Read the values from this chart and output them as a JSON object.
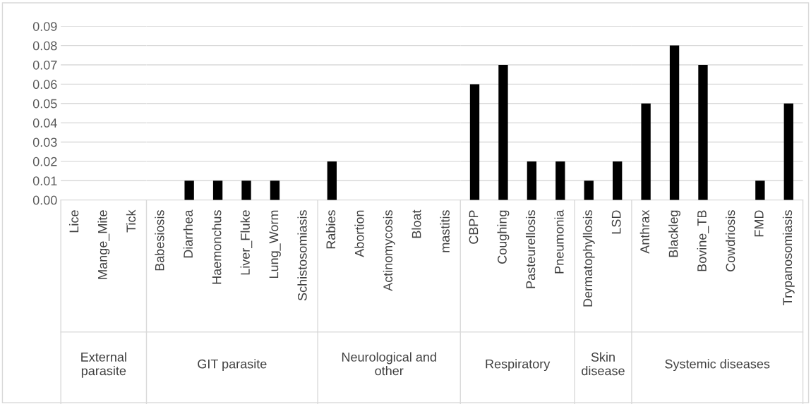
{
  "chart_data": [
    {
      "type": "bar",
      "xlabel": "External\nparasite",
      "categories": [
        "Lice",
        "Mange_Mite",
        "Tick"
      ],
      "values": [
        0,
        0,
        0
      ],
      "color": "#000000",
      "ylim": [
        0,
        0.09
      ],
      "yticks": [
        {
          "value": 0,
          "label": "0.00"
        },
        {
          "value": 0.01,
          "label": "0.01"
        },
        {
          "value": 0.02,
          "label": "0.02"
        },
        {
          "value": 0.03,
          "label": "0.03"
        },
        {
          "value": 0.04,
          "label": "0.04"
        },
        {
          "value": 0.05,
          "label": "0.05"
        },
        {
          "value": 0.06,
          "label": "0.06"
        },
        {
          "value": 0.07,
          "label": "0.07"
        },
        {
          "value": 0.08,
          "label": "0.08"
        },
        {
          "value": 0.09,
          "label": "0.09"
        }
      ],
      "grid": "y"
    },
    {
      "type": "bar",
      "xlabel": "GIT parasite",
      "categories": [
        "Babesiosis",
        "Diarrhea",
        "Haemonchus",
        "Liver_Fluke",
        "Lung_Worm",
        "Schistosomiasis"
      ],
      "values": [
        0,
        0.01,
        0.01,
        0.01,
        0.01,
        0
      ],
      "color": "#000000",
      "ylim": [
        0,
        0.09
      ],
      "grid": "y",
      "tick_labels": "x"
    },
    {
      "type": "bar",
      "xlabel": "Neurological and\nother",
      "categories": [
        "Rabies",
        "Abortion",
        "Actinomycosis",
        "Bloat",
        "mastitis"
      ],
      "values": [
        0.02,
        0,
        0,
        0,
        0
      ],
      "color": "#000000",
      "ylim": [
        0,
        0.09
      ],
      "grid": "y",
      "tick_labels": "x"
    },
    {
      "type": "bar",
      "xlabel": "Respiratory",
      "categories": [
        "CBPP",
        "Coughing",
        "Pasteurellosis",
        "Pneumonia"
      ],
      "values": [
        0.06,
        0.07,
        0.02,
        0.02
      ],
      "color": "#000000",
      "ylim": [
        0,
        0.09
      ],
      "grid": "y",
      "tick_labels": "x"
    },
    {
      "type": "bar",
      "xlabel": "Skin\ndisease",
      "categories": [
        "Dermatophyllosis",
        "LSD"
      ],
      "values": [
        0.01,
        0.02
      ],
      "color": "#000000",
      "ylim": [
        0,
        0.09
      ],
      "grid": "y",
      "tick_labels": "x"
    },
    {
      "type": "bar",
      "xlabel": "Systemic diseases",
      "categories": [
        "Anthrax",
        "Blackleg",
        "Bovine_TB",
        "Cowdriosis",
        "FMD",
        "Trypanosomiasis"
      ],
      "values": [
        0.05,
        0.08,
        0.07,
        0,
        0.01,
        0.05
      ],
      "color": "#000000",
      "ylim": [
        0,
        0.09
      ],
      "grid": "y",
      "tick_labels": "x"
    }
  ]
}
